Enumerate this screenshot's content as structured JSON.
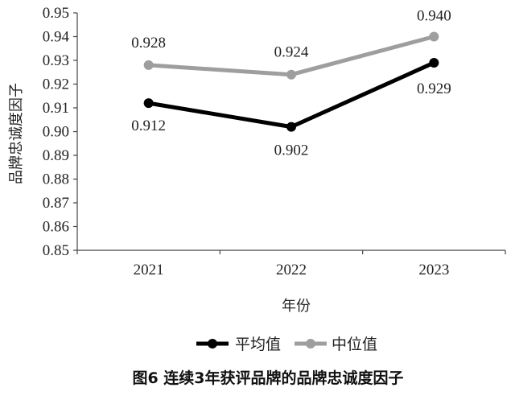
{
  "chart_data": {
    "type": "line",
    "title": "图6 连续3年获评品牌的品牌忠诚度因子",
    "xlabel": "年份",
    "ylabel": "品牌忠诚度因子",
    "categories": [
      "2021",
      "2022",
      "2023"
    ],
    "ylim": [
      0.85,
      0.95
    ],
    "yticks": [
      "0.85",
      "0.86",
      "0.87",
      "0.88",
      "0.89",
      "0.90",
      "0.91",
      "0.92",
      "0.93",
      "0.94",
      "0.95"
    ],
    "grid": false,
    "legend": "bottom",
    "series": [
      {
        "name": "平均值",
        "values": [
          0.912,
          0.902,
          0.929
        ],
        "labels": [
          "0.912",
          "0.902",
          "0.929"
        ],
        "color": "#000000"
      },
      {
        "name": "中位值",
        "values": [
          0.928,
          0.924,
          0.94
        ],
        "labels": [
          "0.928",
          "0.924",
          "0.940"
        ],
        "color": "#9e9e9e"
      }
    ]
  }
}
